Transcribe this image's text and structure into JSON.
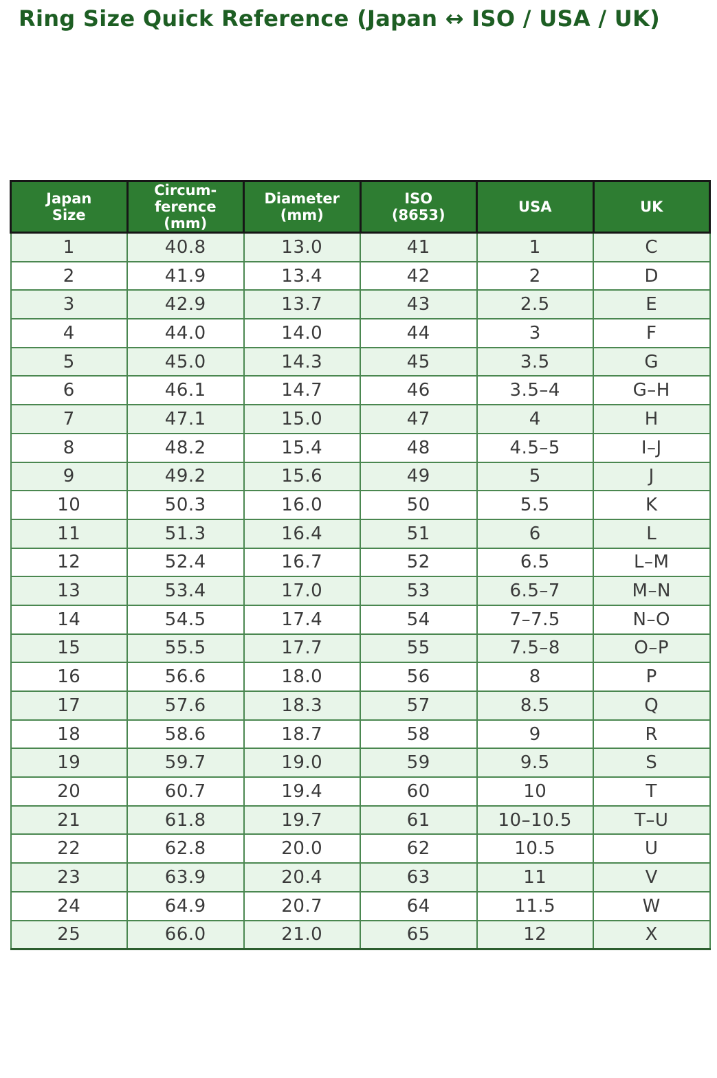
{
  "title": "Ring Size Quick Reference (Japan ↔ ISO / USA / UK)",
  "colors": {
    "title_text": "#1d5e23",
    "header_bg": "#2e7d32",
    "header_text": "#ffffff",
    "header_border": "#161616",
    "row_alt_bg": "#e8f5e9",
    "row_bg": "#ffffff",
    "body_border": "#4a8750",
    "cell_text": "#3a3a3a"
  },
  "table": {
    "columns": [
      "Japan\nSize",
      "Circum-\nference\n(mm)",
      "Diameter\n(mm)",
      "ISO\n(8653)",
      "USA",
      "UK"
    ],
    "rows": [
      [
        "1",
        "40.8",
        "13.0",
        "41",
        "1",
        "C"
      ],
      [
        "2",
        "41.9",
        "13.4",
        "42",
        "2",
        "D"
      ],
      [
        "3",
        "42.9",
        "13.7",
        "43",
        "2.5",
        "E"
      ],
      [
        "4",
        "44.0",
        "14.0",
        "44",
        "3",
        "F"
      ],
      [
        "5",
        "45.0",
        "14.3",
        "45",
        "3.5",
        "G"
      ],
      [
        "6",
        "46.1",
        "14.7",
        "46",
        "3.5–4",
        "G–H"
      ],
      [
        "7",
        "47.1",
        "15.0",
        "47",
        "4",
        "H"
      ],
      [
        "8",
        "48.2",
        "15.4",
        "48",
        "4.5–5",
        "I–J"
      ],
      [
        "9",
        "49.2",
        "15.6",
        "49",
        "5",
        "J"
      ],
      [
        "10",
        "50.3",
        "16.0",
        "50",
        "5.5",
        "K"
      ],
      [
        "11",
        "51.3",
        "16.4",
        "51",
        "6",
        "L"
      ],
      [
        "12",
        "52.4",
        "16.7",
        "52",
        "6.5",
        "L–M"
      ],
      [
        "13",
        "53.4",
        "17.0",
        "53",
        "6.5–7",
        "M–N"
      ],
      [
        "14",
        "54.5",
        "17.4",
        "54",
        "7–7.5",
        "N–O"
      ],
      [
        "15",
        "55.5",
        "17.7",
        "55",
        "7.5–8",
        "O–P"
      ],
      [
        "16",
        "56.6",
        "18.0",
        "56",
        "8",
        "P"
      ],
      [
        "17",
        "57.6",
        "18.3",
        "57",
        "8.5",
        "Q"
      ],
      [
        "18",
        "58.6",
        "18.7",
        "58",
        "9",
        "R"
      ],
      [
        "19",
        "59.7",
        "19.0",
        "59",
        "9.5",
        "S"
      ],
      [
        "20",
        "60.7",
        "19.4",
        "60",
        "10",
        "T"
      ],
      [
        "21",
        "61.8",
        "19.7",
        "61",
        "10–10.5",
        "T–U"
      ],
      [
        "22",
        "62.8",
        "20.0",
        "62",
        "10.5",
        "U"
      ],
      [
        "23",
        "63.9",
        "20.4",
        "63",
        "11",
        "V"
      ],
      [
        "24",
        "64.9",
        "20.7",
        "64",
        "11.5",
        "W"
      ],
      [
        "25",
        "66.0",
        "21.0",
        "65",
        "12",
        "X"
      ]
    ]
  }
}
